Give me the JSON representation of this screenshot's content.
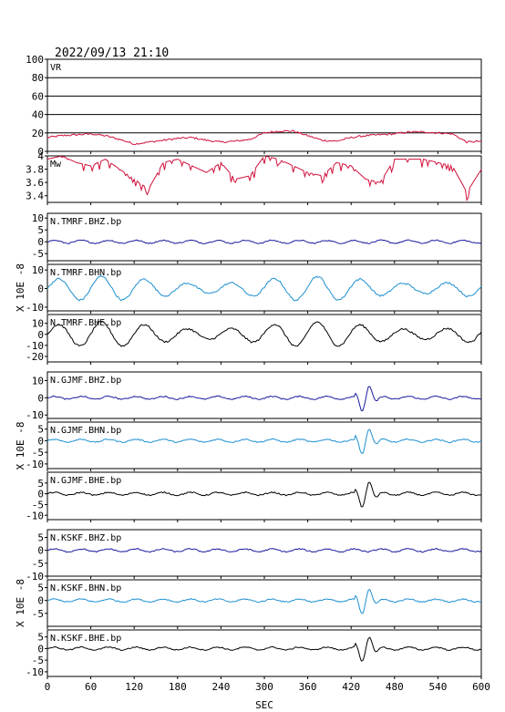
{
  "header": {
    "datetime": "2022/09/13 21:10"
  },
  "chart_data": {
    "type": "line",
    "xlabel": "SEC",
    "xlim": [
      0,
      600
    ],
    "xticks": [
      0,
      60,
      120,
      180,
      240,
      300,
      360,
      420,
      480,
      540,
      600
    ],
    "panels": [
      {
        "id": "vr",
        "label": "VR",
        "ylim": [
          0,
          100
        ],
        "yticks": [
          0,
          20,
          40,
          60,
          80,
          100
        ],
        "grid": true,
        "color": "#d0103a",
        "x": [
          0,
          20,
          40,
          60,
          80,
          100,
          120,
          140,
          160,
          180,
          200,
          220,
          240,
          260,
          280,
          300,
          320,
          340,
          360,
          380,
          400,
          420,
          440,
          460,
          480,
          500,
          520,
          540,
          560,
          580,
          600
        ],
        "y": [
          15,
          17,
          18,
          19,
          17,
          13,
          8,
          10,
          12,
          14,
          15,
          12,
          10,
          11,
          13,
          20,
          22,
          22,
          17,
          12,
          11,
          15,
          17,
          18,
          19,
          21,
          21,
          20,
          19,
          10,
          11
        ]
      },
      {
        "id": "mw",
        "label": "Mw",
        "ylim": [
          3.3,
          4.0
        ],
        "yticks": [
          3.4,
          3.6,
          3.8,
          4.0
        ],
        "grid": false,
        "color": "#d0103a",
        "x": [
          0,
          20,
          40,
          60,
          80,
          100,
          120,
          140,
          160,
          180,
          200,
          220,
          240,
          260,
          280,
          300,
          320,
          340,
          360,
          380,
          400,
          420,
          440,
          460,
          480,
          500,
          520,
          540,
          560,
          580,
          600
        ],
        "y": [
          3.95,
          4.0,
          3.9,
          3.85,
          3.95,
          3.8,
          3.65,
          3.5,
          3.9,
          3.95,
          3.85,
          3.75,
          3.9,
          3.65,
          3.7,
          4.0,
          3.95,
          3.85,
          3.75,
          3.7,
          3.9,
          3.85,
          3.65,
          3.6,
          3.95,
          3.95,
          3.95,
          3.9,
          3.85,
          3.45,
          3.8
        ]
      },
      {
        "id": "tmrf-bhz",
        "label": "N.TMRF.BHZ.bp",
        "ylim": [
          -8,
          12
        ],
        "yticks": [
          -5,
          0,
          5,
          10
        ],
        "color": "#1a1a9e",
        "trace": "quiet"
      },
      {
        "id": "tmrf-bhn",
        "label": "N.TMRF.BHN.bp",
        "ylim": [
          -12,
          13
        ],
        "yticks": [
          -10,
          0,
          10
        ],
        "color": "#1e90d0",
        "trace": "oscillating"
      },
      {
        "id": "tmrf-bhe",
        "label": "N.TMRF.BHE.bp",
        "ylim": [
          -25,
          18
        ],
        "yticks": [
          -20,
          -10,
          0,
          10
        ],
        "color": "#000000",
        "trace": "oscillating"
      },
      {
        "id": "gjmf-bhz",
        "label": "N.GJMF.BHZ.bp",
        "ylim": [
          -12,
          15
        ],
        "yticks": [
          -10,
          0,
          10
        ],
        "color": "#1a1a9e",
        "trace": "event"
      },
      {
        "id": "gjmf-bhn",
        "label": "N.GJMF.BHN.bp",
        "ylim": [
          -12,
          8
        ],
        "yticks": [
          -10,
          -5,
          0,
          5
        ],
        "color": "#1e90d0",
        "trace": "event"
      },
      {
        "id": "gjmf-bhe",
        "label": "N.GJMF.BHE.bp",
        "ylim": [
          -12,
          10
        ],
        "yticks": [
          -10,
          -5,
          0,
          5
        ],
        "color": "#000000",
        "trace": "event"
      },
      {
        "id": "kskf-bhz",
        "label": "N.KSKF.BHZ.bp",
        "ylim": [
          -10,
          8
        ],
        "yticks": [
          -10,
          -5,
          0,
          5
        ],
        "color": "#1a1a9e",
        "trace": "quiet"
      },
      {
        "id": "kskf-bhn",
        "label": "N.KSKF.BHN.bp",
        "ylim": [
          -10,
          8
        ],
        "yticks": [
          -5,
          0,
          5
        ],
        "color": "#1e90d0",
        "trace": "event"
      },
      {
        "id": "kskf-bhe",
        "label": "N.KSKF.BHE.bp",
        "ylim": [
          -12,
          8
        ],
        "yticks": [
          -10,
          -5,
          0,
          5
        ],
        "color": "#000000",
        "trace": "event"
      }
    ],
    "waveform_groups": [
      {
        "ylabel": "X 10E -8",
        "panels": [
          "tmrf-bhz",
          "tmrf-bhn",
          "tmrf-bhe"
        ]
      },
      {
        "ylabel": "X 10E -8",
        "panels": [
          "gjmf-bhz",
          "gjmf-bhn",
          "gjmf-bhe"
        ]
      },
      {
        "ylabel": "X 10E -8",
        "panels": [
          "kskf-bhz",
          "kskf-bhn",
          "kskf-bhe"
        ]
      }
    ]
  }
}
